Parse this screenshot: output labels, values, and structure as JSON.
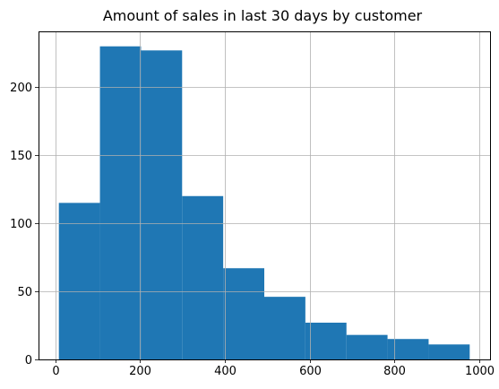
{
  "chart_data": {
    "type": "bar",
    "subtype": "histogram",
    "title": "Amount of sales in last 30 days by customer",
    "xlabel": "",
    "ylabel": "",
    "bins": [
      {
        "x_start": 8,
        "x_end": 105,
        "count": 115
      },
      {
        "x_start": 105,
        "x_end": 202,
        "count": 230
      },
      {
        "x_start": 202,
        "x_end": 299,
        "count": 227
      },
      {
        "x_start": 299,
        "x_end": 396,
        "count": 120
      },
      {
        "x_start": 396,
        "x_end": 493,
        "count": 67
      },
      {
        "x_start": 493,
        "x_end": 590,
        "count": 46
      },
      {
        "x_start": 590,
        "x_end": 687,
        "count": 27
      },
      {
        "x_start": 687,
        "x_end": 784,
        "count": 18
      },
      {
        "x_start": 784,
        "x_end": 881,
        "count": 15
      },
      {
        "x_start": 881,
        "x_end": 978,
        "count": 11
      }
    ],
    "xlim": [
      -40,
      1026
    ],
    "ylim": [
      0,
      241
    ],
    "xticks": [
      0,
      200,
      400,
      600,
      800,
      1000
    ],
    "yticks": [
      0,
      50,
      100,
      150,
      200
    ],
    "grid": true,
    "bar_color": "#1f77b4",
    "grid_color": "#b0b0b0"
  }
}
